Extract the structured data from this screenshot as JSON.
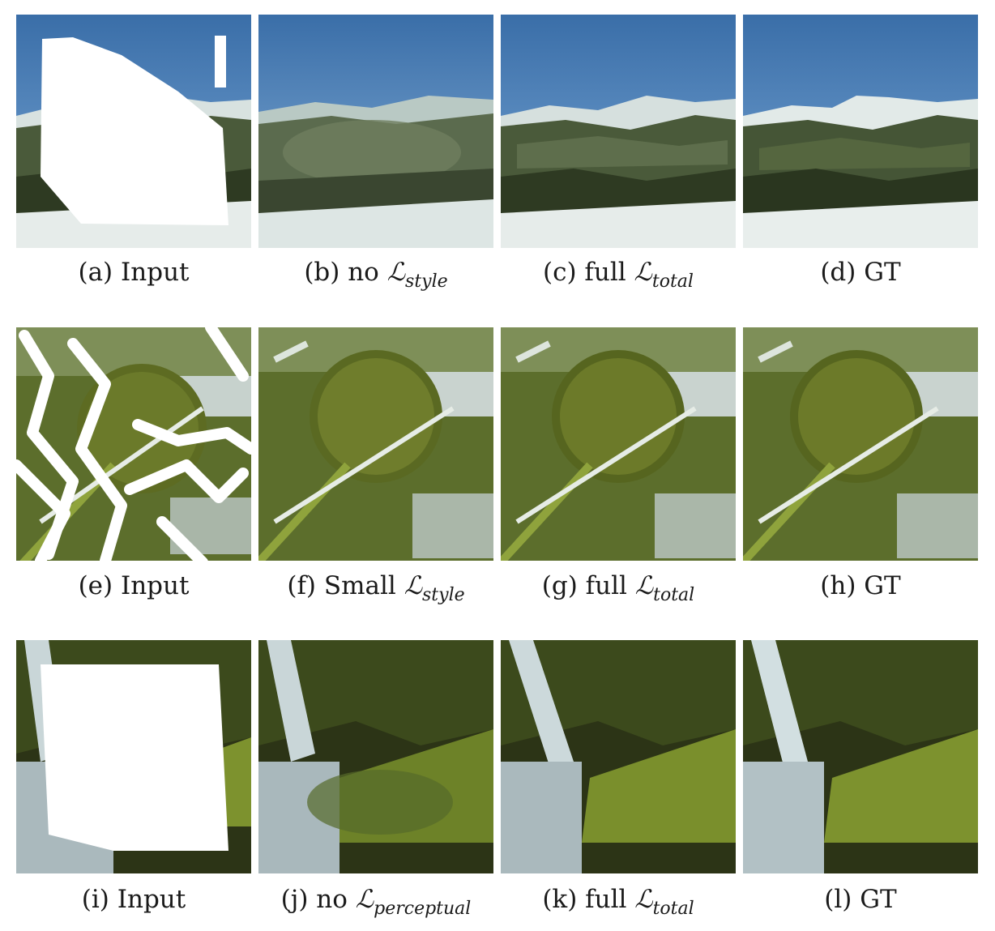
{
  "figure": {
    "rows": [
      {
        "scene": "mountain",
        "panels": [
          {
            "id": "a",
            "prefix": "(a) Input",
            "symbol": "",
            "subscript": "",
            "kind": "masked"
          },
          {
            "id": "b",
            "prefix": "(b) no ",
            "symbol": "ℒ",
            "subscript": "style",
            "kind": "blurry"
          },
          {
            "id": "c",
            "prefix": "(c) full ",
            "symbol": "ℒ",
            "subscript": "total",
            "kind": "result"
          },
          {
            "id": "d",
            "prefix": "(d) GT",
            "symbol": "",
            "subscript": "",
            "kind": "gt"
          }
        ]
      },
      {
        "scene": "fruit",
        "panels": [
          {
            "id": "e",
            "prefix": "(e) Input",
            "symbol": "",
            "subscript": "",
            "kind": "masked"
          },
          {
            "id": "f",
            "prefix": "(f) Small ",
            "symbol": "ℒ",
            "subscript": "style",
            "kind": "result"
          },
          {
            "id": "g",
            "prefix": "(g) full ",
            "symbol": "ℒ",
            "subscript": "total",
            "kind": "result"
          },
          {
            "id": "h",
            "prefix": "(h) GT",
            "symbol": "",
            "subscript": "",
            "kind": "gt"
          }
        ]
      },
      {
        "scene": "waterfall",
        "panels": [
          {
            "id": "i",
            "prefix": "(i) Input",
            "symbol": "",
            "subscript": "",
            "kind": "masked"
          },
          {
            "id": "j",
            "prefix": "(j) no ",
            "symbol": "ℒ",
            "subscript": "perceptual",
            "kind": "blurry"
          },
          {
            "id": "k",
            "prefix": "(k) full ",
            "symbol": "ℒ",
            "subscript": "total",
            "kind": "result"
          },
          {
            "id": "l",
            "prefix": "(l) GT",
            "symbol": "",
            "subscript": "",
            "kind": "gt"
          }
        ]
      }
    ]
  }
}
